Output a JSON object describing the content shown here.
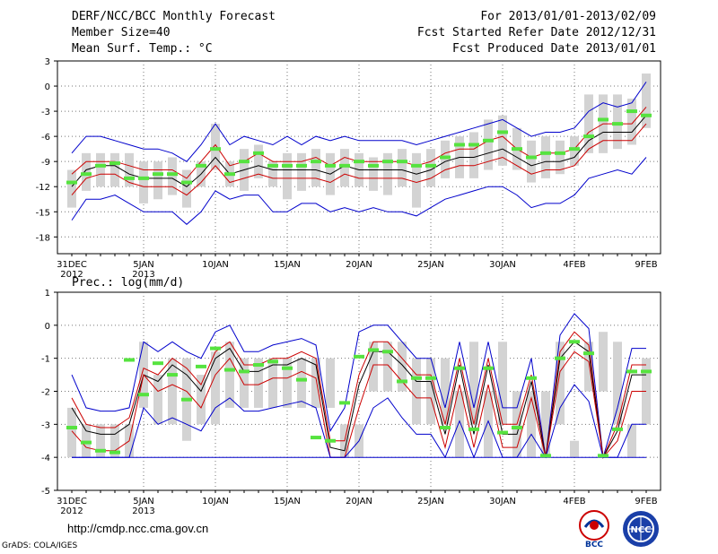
{
  "header": {
    "title": "DERF/NCC/BCC Monthly Forecast",
    "member": "Member Size=40",
    "variable": "Mean Surf. Temp.: °C",
    "period": "For 2013/01/01-2013/02/09",
    "started": "Fcst Started Refer Date 2012/12/31",
    "produced": "Fcst Produced Date 2013/01/01"
  },
  "footer": {
    "url": "http://cmdp.ncc.cma.gov.cn",
    "grads": "GrADS: COLA/IGES",
    "logo_left": "BCC",
    "logo_right": "NCC"
  },
  "colors": {
    "box": "#d3d3d3",
    "median": "#56e33f",
    "outer": "#0000cc",
    "mid": "#cc0000",
    "mean": "#000000"
  },
  "chart_data": [
    {
      "type": "box-line",
      "title": "Mean Surf. Temp.: °C",
      "ylim": [
        -20,
        3
      ],
      "yticks": [
        3,
        0,
        -3,
        -6,
        -9,
        -12,
        -15,
        -18
      ],
      "x_labels": [
        {
          "i": 0,
          "l1": "31DEC",
          "l2": "2012"
        },
        {
          "i": 5,
          "l1": "5JAN",
          "l2": "2013"
        },
        {
          "i": 10,
          "l1": "10JAN",
          "l2": ""
        },
        {
          "i": 15,
          "l1": "15JAN",
          "l2": ""
        },
        {
          "i": 20,
          "l1": "20JAN",
          "l2": ""
        },
        {
          "i": 25,
          "l1": "25JAN",
          "l2": ""
        },
        {
          "i": 30,
          "l1": "30JAN",
          "l2": ""
        },
        {
          "i": 35,
          "l1": "4FEB",
          "l2": ""
        },
        {
          "i": 40,
          "l1": "9FEB",
          "l2": ""
        }
      ],
      "box_low": [
        -14.5,
        -12.5,
        -12,
        -12,
        -12,
        -14,
        -13.5,
        -13,
        -14.5,
        -12,
        -10,
        -12,
        -12.5,
        -11,
        -12,
        -13.5,
        -12.5,
        -12,
        -13,
        -12,
        -12,
        -12.5,
        -13,
        -12,
        -14.5,
        -12,
        -11,
        -11,
        -11,
        -10,
        -9.5,
        -10,
        -11.5,
        -11,
        -10.5,
        -9.5,
        -8,
        -8,
        -7.5,
        -7,
        -5
      ],
      "box_high": [
        -10,
        -8,
        -8,
        -8,
        -8,
        -9,
        -9,
        -8.5,
        -10,
        -9,
        -4.5,
        -9,
        -7.5,
        -7,
        -9,
        -8,
        -8,
        -7.5,
        -8,
        -7.5,
        -8,
        -8.5,
        -8,
        -7.5,
        -8,
        -7.5,
        -6.5,
        -6,
        -5.5,
        -4,
        -3.5,
        -5,
        -6.5,
        -6,
        -6.5,
        -6,
        -1,
        -1,
        -1,
        -1.5,
        1.5
      ],
      "median": [
        -11.5,
        -10.5,
        -9.5,
        -9.2,
        -11,
        -11,
        -10.5,
        -10.5,
        -11.5,
        -9.5,
        -7.5,
        -10.5,
        -9,
        -8,
        -9.5,
        -9.5,
        -9.5,
        -9,
        -9.5,
        -9.5,
        -9,
        -9.5,
        -9,
        -9,
        -9.5,
        -9.5,
        -8.5,
        -7,
        -7,
        -6.5,
        -5.5,
        -7.5,
        -8.5,
        -8,
        -8,
        -7.5,
        -6,
        -4,
        -4.5,
        -3,
        -3.5
      ],
      "series": [
        {
          "name": "max",
          "role": "outer",
          "values": [
            -8,
            -6,
            -6,
            -6.5,
            -7,
            -7.5,
            -7.5,
            -8,
            -9,
            -7,
            -4.5,
            -7,
            -6,
            -6.5,
            -7,
            -6,
            -7,
            -6,
            -6.5,
            -6,
            -6.5,
            -6.5,
            -6.5,
            -6.5,
            -7,
            -6.5,
            -6,
            -5.5,
            -5,
            -4.5,
            -4,
            -5,
            -6,
            -5.5,
            -5.5,
            -5,
            -3,
            -2,
            -2.5,
            -2,
            0.5
          ]
        },
        {
          "name": "upper",
          "role": "mid",
          "values": [
            -10.5,
            -9,
            -9,
            -9,
            -9.5,
            -10,
            -10,
            -10,
            -11,
            -9,
            -7,
            -9.5,
            -9,
            -8,
            -9,
            -9,
            -9,
            -8.5,
            -9.5,
            -8.5,
            -9,
            -9,
            -9,
            -9,
            -9.5,
            -9,
            -8,
            -7.5,
            -7.5,
            -6.5,
            -6,
            -7.5,
            -8.5,
            -8,
            -8,
            -7.5,
            -5.5,
            -4.5,
            -4.5,
            -4.5,
            -2.5
          ]
        },
        {
          "name": "mean",
          "role": "mean",
          "values": [
            -12,
            -10,
            -9.5,
            -9.5,
            -10.5,
            -11,
            -11,
            -11,
            -12,
            -10.5,
            -8.5,
            -10.5,
            -10,
            -9.5,
            -10,
            -10,
            -10,
            -10,
            -10.5,
            -9.5,
            -10,
            -10,
            -10,
            -10,
            -10.5,
            -10,
            -9,
            -8.5,
            -8.5,
            -8,
            -7.5,
            -8.5,
            -9.5,
            -9,
            -9,
            -8.5,
            -6.5,
            -5.5,
            -5.5,
            -5.5,
            -3.5
          ]
        },
        {
          "name": "lower",
          "role": "mid",
          "values": [
            -13,
            -11,
            -10.5,
            -10.5,
            -11.5,
            -12,
            -12,
            -12,
            -13,
            -11.5,
            -9.5,
            -11.5,
            -11,
            -10.5,
            -11,
            -11,
            -11,
            -11,
            -11.5,
            -10.5,
            -11,
            -11,
            -11,
            -11,
            -11.5,
            -11,
            -10,
            -9.5,
            -9.5,
            -9,
            -8.5,
            -9.5,
            -10.5,
            -10,
            -10,
            -9.5,
            -7.5,
            -6.5,
            -6.5,
            -6.5,
            -4.5
          ]
        },
        {
          "name": "min",
          "role": "outer",
          "values": [
            -16,
            -13.5,
            -13.5,
            -13,
            -14,
            -15,
            -15,
            -15,
            -16.5,
            -15,
            -12.5,
            -13.5,
            -13,
            -13,
            -15,
            -15,
            -14,
            -14,
            -15,
            -14.5,
            -15,
            -14.5,
            -15,
            -15,
            -15.5,
            -14.5,
            -13.5,
            -13,
            -12.5,
            -12,
            -12,
            -13,
            -14.5,
            -14,
            -14,
            -13,
            -11,
            -10.5,
            -10,
            -10.5,
            -8.5
          ]
        }
      ]
    },
    {
      "type": "box-line",
      "title": "Prec.: log(mm/d)",
      "ylim": [
        -5,
        1
      ],
      "yticks": [
        1,
        0,
        -1,
        -2,
        -3,
        -4,
        -5
      ],
      "x_labels": [
        {
          "i": 0,
          "l1": "31DEC",
          "l2": "2012"
        },
        {
          "i": 5,
          "l1": "5JAN",
          "l2": "2013"
        },
        {
          "i": 10,
          "l1": "10JAN",
          "l2": ""
        },
        {
          "i": 15,
          "l1": "15JAN",
          "l2": ""
        },
        {
          "i": 20,
          "l1": "20JAN",
          "l2": ""
        },
        {
          "i": 25,
          "l1": "25JAN",
          "l2": ""
        },
        {
          "i": 30,
          "l1": "30JAN",
          "l2": ""
        },
        {
          "i": 35,
          "l1": "4FEB",
          "l2": ""
        },
        {
          "i": 40,
          "l1": "9FEB",
          "l2": ""
        }
      ],
      "box_low": [
        -4,
        -4,
        -4,
        -4,
        -4,
        -2.5,
        -3,
        -3,
        -3.5,
        -3,
        -3,
        -2.5,
        -2.5,
        -2.5,
        -2.5,
        -2.5,
        -2.5,
        -2.5,
        -2.5,
        -4,
        -4,
        -2,
        -2,
        -2,
        -3,
        -3,
        -3,
        -4,
        -3,
        -4,
        -3,
        -4,
        -4,
        -4,
        -3,
        -4,
        -2,
        -2,
        -3,
        -4,
        -3
      ],
      "box_high": [
        -2.5,
        -3,
        -3,
        -3,
        -3,
        -0.5,
        -1.5,
        -1,
        -1,
        -1.5,
        -0.8,
        -0.5,
        -1,
        -1,
        -1,
        -1,
        -1,
        -1,
        -1,
        -3,
        -3,
        -0.5,
        -0.5,
        -0.5,
        -1,
        -1,
        -1,
        -2,
        -0.5,
        -2,
        -0.5,
        -2,
        -2,
        -2,
        -0.5,
        -3.5,
        -0.5,
        -0.2,
        -0.5,
        -3,
        -1
      ],
      "median": [
        -3.1,
        -3.55,
        -3.8,
        -3.85,
        -1.05,
        -2.1,
        -1.15,
        -1.5,
        -2.25,
        -1.25,
        -0.7,
        -1.35,
        -1.4,
        -1.2,
        -1.1,
        -1.3,
        -1.65,
        -3.4,
        -3.5,
        -2.35,
        -0.95,
        -0.75,
        -0.8,
        -1.7,
        -1.6,
        -1.6,
        -3.1,
        -1.3,
        -3.15,
        -1.3,
        -3.25,
        -3.1,
        -1.6,
        -3.95,
        -1,
        -0.5,
        -0.85,
        -3.95,
        -3.15,
        -1.4,
        -1.4
      ],
      "series": [
        {
          "name": "max",
          "role": "outer",
          "values": [
            -1.5,
            -2.5,
            -2.6,
            -2.6,
            -2.5,
            -0.5,
            -0.8,
            -0.5,
            -0.8,
            -1,
            -0.2,
            0,
            -0.8,
            -0.8,
            -0.6,
            -0.5,
            -0.4,
            -0.6,
            -3.2,
            -2.5,
            -0.2,
            0,
            0,
            -0.5,
            -1,
            -1,
            -2.5,
            -0.5,
            -2.5,
            -0.5,
            -2.5,
            -2.5,
            -1,
            -4,
            -0.3,
            0.35,
            -0.1,
            -4,
            -2.5,
            -0.7,
            -0.7
          ]
        },
        {
          "name": "upper",
          "role": "mid",
          "values": [
            -2.2,
            -3,
            -3.1,
            -3.1,
            -2.8,
            -1.3,
            -1.5,
            -1,
            -1.3,
            -1.8,
            -0.8,
            -0.5,
            -1.2,
            -1.2,
            -1,
            -1,
            -0.8,
            -1,
            -3.5,
            -3.5,
            -1.5,
            -0.5,
            -0.5,
            -1,
            -1.5,
            -1.5,
            -3,
            -1,
            -3,
            -1,
            -3,
            -3,
            -1.5,
            -4,
            -0.8,
            -0.2,
            -0.6,
            -4,
            -3,
            -1.2,
            -1.2
          ]
        },
        {
          "name": "mean",
          "role": "mean",
          "values": [
            -2.5,
            -3.2,
            -3.3,
            -3.3,
            -3,
            -1.5,
            -1.7,
            -1.2,
            -1.5,
            -2,
            -1,
            -0.7,
            -1.4,
            -1.4,
            -1.2,
            -1.2,
            -1,
            -1.2,
            -3.7,
            -3.8,
            -1.8,
            -0.8,
            -0.8,
            -1.2,
            -1.7,
            -1.7,
            -3.3,
            -1.2,
            -3.3,
            -1.2,
            -3.3,
            -3.3,
            -1.7,
            -4,
            -1,
            -0.5,
            -0.8,
            -4,
            -3.2,
            -1.5,
            -1.5
          ]
        },
        {
          "name": "lower",
          "role": "mid",
          "values": [
            -3.2,
            -3.7,
            -3.8,
            -3.8,
            -3.5,
            -1.5,
            -2,
            -1.8,
            -2,
            -2.5,
            -1.5,
            -1,
            -1.8,
            -1.8,
            -1.6,
            -1.6,
            -1.4,
            -1.6,
            -4,
            -4,
            -2.5,
            -1.2,
            -1.2,
            -1.7,
            -2.2,
            -2.2,
            -3.7,
            -1.8,
            -3.7,
            -1.8,
            -3.7,
            -3.7,
            -2.2,
            -4,
            -1.4,
            -0.8,
            -1.1,
            -4,
            -3.5,
            -2,
            -2
          ]
        },
        {
          "name": "min",
          "role": "outer",
          "values": [
            -4,
            -4,
            -4,
            -4,
            -4,
            -2.5,
            -3,
            -2.8,
            -3,
            -3.2,
            -2.5,
            -2.2,
            -2.6,
            -2.6,
            -2.5,
            -2.4,
            -2.3,
            -2.5,
            -4,
            -4,
            -3.5,
            -2.5,
            -2.2,
            -2.8,
            -3.3,
            -3.3,
            -4,
            -2.9,
            -4,
            -2.9,
            -4,
            -4,
            -3.3,
            -4,
            -2.5,
            -1.8,
            -2.3,
            -4,
            -4,
            -3,
            -3
          ]
        },
        {
          "name": "base",
          "role": "outer",
          "values": [
            -4,
            -4,
            -4,
            -4,
            -4,
            -4,
            -4,
            -4,
            -4,
            -4,
            -4,
            -4,
            -4,
            -4,
            -4,
            -4,
            -4,
            -4,
            -4,
            -4,
            -4,
            -4,
            -4,
            -4,
            -4,
            -4,
            -4,
            -4,
            -4,
            -4,
            -4,
            -4,
            -4,
            -4,
            -4,
            -4,
            -4,
            -4,
            -4,
            -4,
            -4
          ]
        }
      ]
    }
  ]
}
